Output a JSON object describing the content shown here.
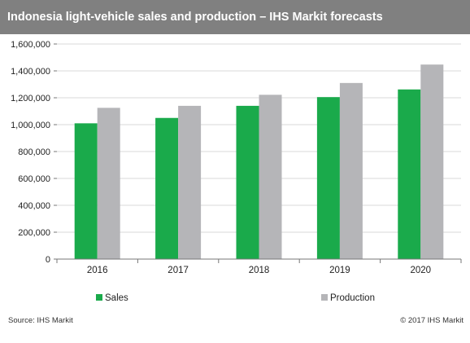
{
  "header": {
    "title": "Indonesia light-vehicle sales and production – IHS Markit forecasts"
  },
  "footer": {
    "source": "Source: IHS Markit",
    "copyright": "© 2017 IHS Markit"
  },
  "chart_data": {
    "type": "bar",
    "title": "Indonesia light-vehicle sales and production – IHS Markit forecasts",
    "xlabel": "",
    "ylabel": "",
    "categories": [
      "2016",
      "2017",
      "2018",
      "2019",
      "2020"
    ],
    "series": [
      {
        "name": "Sales",
        "color": "#1aaa4b",
        "values": [
          1010000,
          1050000,
          1140000,
          1205000,
          1262000
        ]
      },
      {
        "name": "Production",
        "color": "#b5b5b8",
        "values": [
          1125000,
          1140000,
          1222000,
          1310000,
          1447000
        ]
      }
    ],
    "ylim": [
      0,
      1600000
    ],
    "yticks": [
      0,
      200000,
      400000,
      600000,
      800000,
      1000000,
      1200000,
      1400000,
      1600000
    ],
    "ytick_labels": [
      "0",
      "200,000",
      "400,000",
      "600,000",
      "800,000",
      "1,000,000",
      "1,200,000",
      "1,400,000",
      "1,600,000"
    ],
    "grid": true,
    "legend": "bottom"
  }
}
